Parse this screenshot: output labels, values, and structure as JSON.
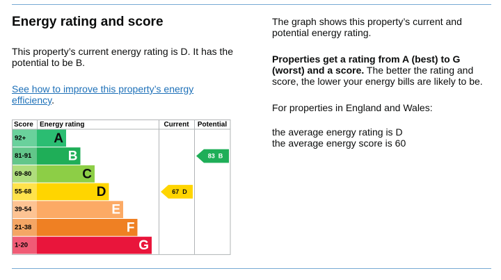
{
  "header": {
    "title": "Energy rating and score"
  },
  "summary": "This property’s current energy rating is D. It has the potential to be B.",
  "link": {
    "text": "See how to improve this property’s energy efficiency",
    "after": "."
  },
  "chart": {
    "headers": [
      "Score",
      "Energy rating",
      "Current",
      "Potential"
    ],
    "bands": [
      {
        "range": "92+",
        "letter": "A",
        "color": "#2bbd72"
      },
      {
        "range": "81-91",
        "letter": "B",
        "color": "#1fae58"
      },
      {
        "range": "69-80",
        "letter": "C",
        "color": "#8dce46"
      },
      {
        "range": "55-68",
        "letter": "D",
        "color": "#ffd500"
      },
      {
        "range": "39-54",
        "letter": "E",
        "color": "#fcaa65"
      },
      {
        "range": "21-38",
        "letter": "F",
        "color": "#ef8023"
      },
      {
        "range": "1-20",
        "letter": "G",
        "color": "#e9153b"
      }
    ],
    "current": {
      "score": 67,
      "rating": "D"
    },
    "potential": {
      "score": 83,
      "rating": "B"
    }
  },
  "info": {
    "intro": "The graph shows this property’s current and potential energy rating.",
    "bold": "Properties get a rating from A (best) to G (worst) and a score.",
    "body": " The better the rating and score, the lower your energy bills are likely to be.",
    "region": "For properties in England and Wales:",
    "average_rating": "the average energy rating is D",
    "average_score": "the average energy score is 60"
  }
}
